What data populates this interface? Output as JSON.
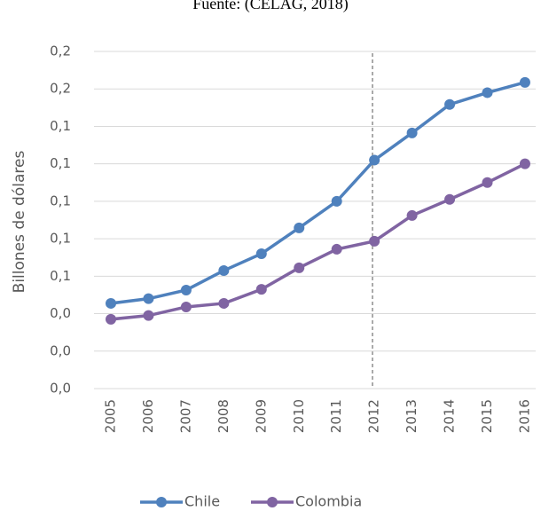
{
  "chart_data": {
    "type": "line",
    "title": "Fuente: (CELAG, 2018)",
    "y_label": "Billones de dólares",
    "categories": [
      "2005",
      "2006",
      "2007",
      "2008",
      "2009",
      "2010",
      "2011",
      "2012",
      "2013",
      "2014",
      "2015",
      "2016"
    ],
    "series": [
      {
        "name": "Chile",
        "color": "#4f81bd",
        "values": [
          0.0455,
          0.048,
          0.0526,
          0.063,
          0.072,
          0.0858,
          0.1,
          0.122,
          0.1365,
          0.1517,
          0.158,
          0.1635
        ]
      },
      {
        "name": "Colombia",
        "color": "#8064a2",
        "values": [
          0.037,
          0.039,
          0.0436,
          0.0455,
          0.053,
          0.0645,
          0.0744,
          0.0787,
          0.0924,
          0.101,
          0.11,
          0.12
        ]
      }
    ],
    "ylim": [
      0,
      0.18
    ],
    "yticks": [
      {
        "value": 0,
        "label": "0,0"
      },
      {
        "value": 0.02,
        "label": "0,0"
      },
      {
        "value": 0.04,
        "label": "0,0"
      },
      {
        "value": 0.06,
        "label": "0,1"
      },
      {
        "value": 0.08,
        "label": "0,1"
      },
      {
        "value": 0.1,
        "label": "0,1"
      },
      {
        "value": 0.12,
        "label": "0,1"
      },
      {
        "value": 0.14,
        "label": "0,1"
      },
      {
        "value": 0.16,
        "label": "0,2"
      },
      {
        "value": 0.18,
        "label": "0,2"
      }
    ],
    "grid": true,
    "legend": "bottom"
  }
}
